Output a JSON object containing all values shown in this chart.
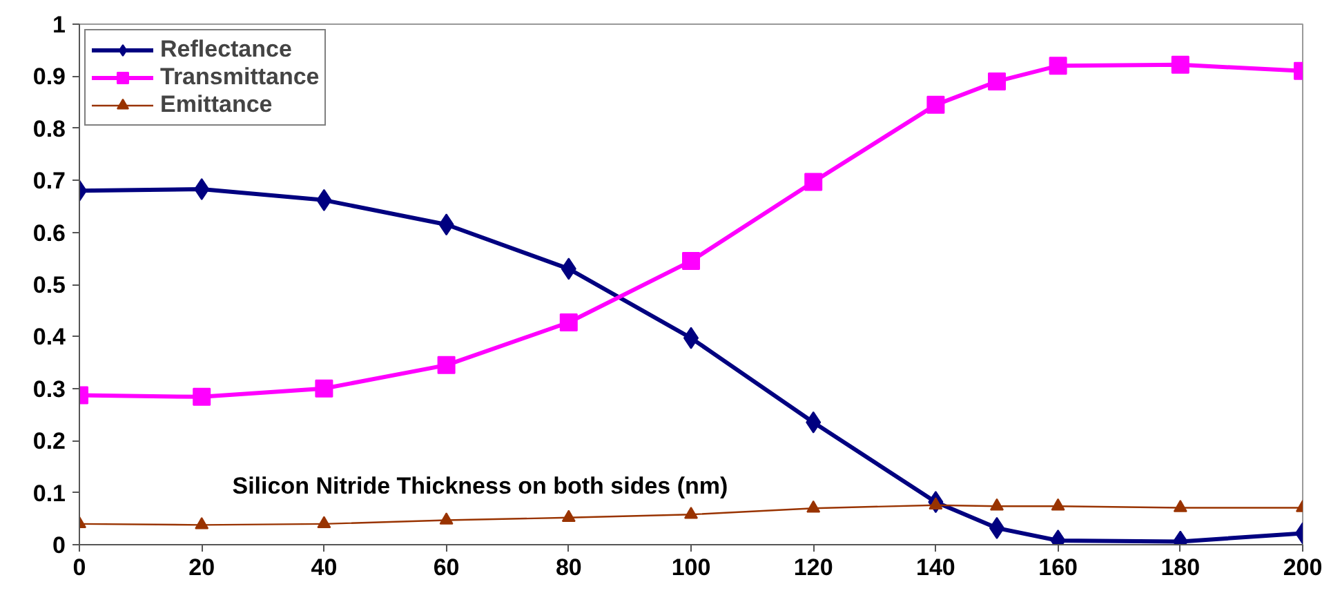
{
  "chart_data": {
    "type": "line",
    "xlabel": "Silicon Nitride Thickness on both sides (nm)",
    "x": [
      0,
      20,
      40,
      60,
      80,
      100,
      120,
      140,
      150,
      160,
      180,
      200
    ],
    "series": [
      {
        "name": "Reflectance",
        "color": "#000080",
        "marker": "diamond",
        "values": [
          0.68,
          0.683,
          0.662,
          0.615,
          0.53,
          0.397,
          0.235,
          0.082,
          0.032,
          0.008,
          0.006,
          0.022
        ]
      },
      {
        "name": "Transmittance",
        "color": "#ff00ff",
        "marker": "square",
        "values": [
          0.287,
          0.284,
          0.3,
          0.345,
          0.427,
          0.545,
          0.697,
          0.845,
          0.89,
          0.92,
          0.922,
          0.91
        ]
      },
      {
        "name": "Emittance",
        "color": "#993300",
        "marker": "triangle",
        "values": [
          0.04,
          0.038,
          0.04,
          0.047,
          0.052,
          0.058,
          0.07,
          0.076,
          0.074,
          0.074,
          0.071,
          0.071
        ]
      }
    ],
    "xlim": [
      0,
      200
    ],
    "ylim": [
      0,
      1
    ],
    "xticks": [
      0,
      20,
      40,
      60,
      80,
      100,
      120,
      140,
      160,
      180,
      200
    ],
    "yticks": [
      0,
      0.1,
      0.2,
      0.3,
      0.4,
      0.5,
      0.6,
      0.7,
      0.8,
      0.9,
      1
    ],
    "grid": false,
    "legend": "top left"
  }
}
